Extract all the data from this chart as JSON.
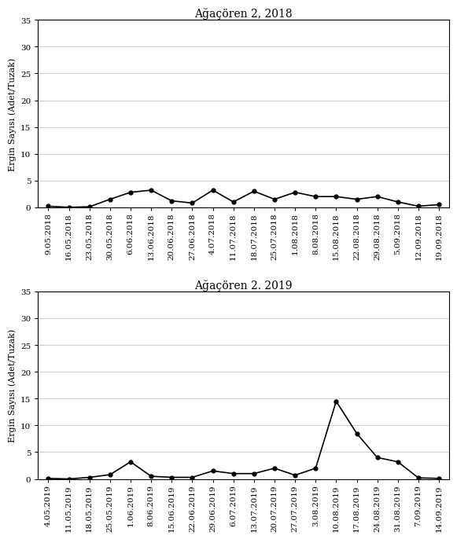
{
  "title_2018": "Ağaçören 2, 2018",
  "title_2019": "Ağaçören 2. 2019",
  "ylabel": "Ergin Sayısı (Adet/Tuzak)",
  "ylim": [
    0,
    35
  ],
  "yticks": [
    0,
    5,
    10,
    15,
    20,
    25,
    30,
    35
  ],
  "dates_2018": [
    "9.05.2018",
    "16.05.2018",
    "23.05.2018",
    "30.05.2018",
    "6.06.2018",
    "13.06.2018",
    "20.06.2018",
    "27.06.2018",
    "4.07.2018",
    "11.07.2018",
    "18.07.2018",
    "25.07.2018",
    "1.08.2018",
    "8.08.2018",
    "15.08.2018",
    "22.08.2018",
    "29.08.2018",
    "5.09.2018",
    "12.09.2018",
    "19.09.2018"
  ],
  "values_2018": [
    0.2,
    0.0,
    0.1,
    1.5,
    2.8,
    3.2,
    1.2,
    0.8,
    3.2,
    1.0,
    3.0,
    1.5,
    2.8,
    2.0,
    2.0,
    1.5,
    2.0,
    1.0,
    0.2,
    0.5
  ],
  "dates_2019": [
    "4.05.2019",
    "11.05.2019",
    "18.05.2019",
    "25.05.2019",
    "1.06.2019",
    "8.06.2019",
    "15.06.2019",
    "22.06.2019",
    "29.06.2019",
    "6.07.2019",
    "13.07.2019",
    "20.07.2019",
    "27.07.2019",
    "3.08.2019",
    "10.08.2019",
    "17.08.2019",
    "24.08.2019",
    "31.08.2019",
    "7.09.2019",
    "14.09.2019"
  ],
  "values_2019": [
    0.1,
    0.0,
    0.3,
    0.8,
    3.2,
    0.5,
    0.3,
    0.3,
    1.5,
    1.0,
    1.0,
    2.0,
    0.7,
    2.0,
    14.5,
    8.5,
    4.0,
    3.2,
    0.2,
    0.1
  ],
  "line_color": "#000000",
  "marker": "o",
  "markersize": 3.5,
  "linewidth": 1.2,
  "grid_color": "#d0d0d0",
  "bg_color": "#ffffff",
  "title_fontsize": 10,
  "label_fontsize": 8,
  "tick_fontsize": 7.5
}
